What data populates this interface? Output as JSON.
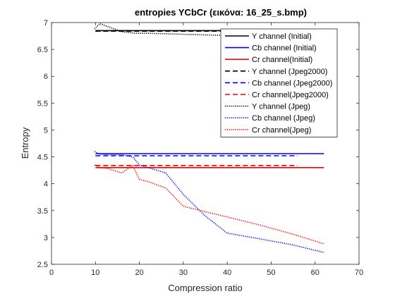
{
  "chart_data": {
    "type": "line",
    "title": "entropies YCbCr (εικόνα: 16_25_s.bmp)",
    "xlabel": "Compression ratio",
    "ylabel": "Entropy",
    "xlim": [
      0,
      70
    ],
    "ylim": [
      2.5,
      7
    ],
    "xticks": [
      0,
      10,
      20,
      30,
      40,
      50,
      60,
      70
    ],
    "yticks": [
      2.5,
      3,
      3.5,
      4,
      4.5,
      5,
      5.5,
      6,
      6.5,
      7
    ],
    "xtick_labels": [
      "0",
      "10",
      "20",
      "30",
      "40",
      "50",
      "60",
      "70"
    ],
    "ytick_labels": [
      "2.5",
      "3",
      "3.5",
      "4",
      "4.5",
      "5",
      "5.5",
      "6",
      "6.5",
      "7"
    ],
    "grid": false,
    "legend_position": "top-right",
    "series": [
      {
        "name": "Y channel (Initial)",
        "color": "#000000",
        "style": "solid",
        "x": [
          10,
          62
        ],
        "y": [
          6.85,
          6.85
        ]
      },
      {
        "name": "Cb channel (Initial)",
        "color": "#0000ff",
        "style": "solid",
        "x": [
          10,
          62
        ],
        "y": [
          4.56,
          4.56
        ]
      },
      {
        "name": "Cr channel(Initial)",
        "color": "#ff0000",
        "style": "solid",
        "x": [
          10,
          62
        ],
        "y": [
          4.3,
          4.3
        ]
      },
      {
        "name": "Y channel (Jpeg2000)",
        "color": "#000000",
        "style": "dashed",
        "x": [
          10,
          56
        ],
        "y": [
          6.84,
          6.84
        ]
      },
      {
        "name": "Cb channel (Jpeg2000)",
        "color": "#0000ff",
        "style": "dashed",
        "x": [
          10,
          56
        ],
        "y": [
          4.52,
          4.52
        ]
      },
      {
        "name": "Cr channel(Jpeg2000)",
        "color": "#ff0000",
        "style": "dashed",
        "x": [
          10,
          56
        ],
        "y": [
          4.34,
          4.34
        ]
      },
      {
        "name": "Y channel (Jpeg)",
        "color": "#000000",
        "style": "dotted",
        "x": [
          9.8,
          11,
          13,
          16,
          19,
          22,
          26,
          31,
          35,
          40,
          47,
          55,
          62
        ],
        "y": [
          6.88,
          6.98,
          6.92,
          6.83,
          6.8,
          6.8,
          6.79,
          6.78,
          6.77,
          6.76,
          6.76,
          6.76,
          6.75
        ]
      },
      {
        "name": "Cb channel (Jpeg)",
        "color": "#0000ff",
        "style": "dotted",
        "x": [
          9.8,
          11,
          13,
          16,
          18.5,
          20,
          22,
          26,
          30,
          35,
          40,
          47,
          55,
          62
        ],
        "y": [
          4.6,
          4.55,
          4.54,
          4.54,
          4.5,
          4.35,
          4.3,
          4.2,
          3.8,
          3.4,
          3.08,
          2.98,
          2.86,
          2.72
        ]
      },
      {
        "name": "Cr channel(Jpeg)",
        "color": "#ff0000",
        "style": "dotted",
        "x": [
          9.8,
          11,
          13,
          16,
          18.5,
          20,
          22,
          26,
          30,
          35,
          40,
          47,
          55,
          62
        ],
        "y": [
          4.35,
          4.3,
          4.28,
          4.2,
          4.34,
          4.08,
          4.04,
          3.92,
          3.58,
          3.48,
          3.38,
          3.24,
          3.06,
          2.88
        ]
      }
    ]
  }
}
